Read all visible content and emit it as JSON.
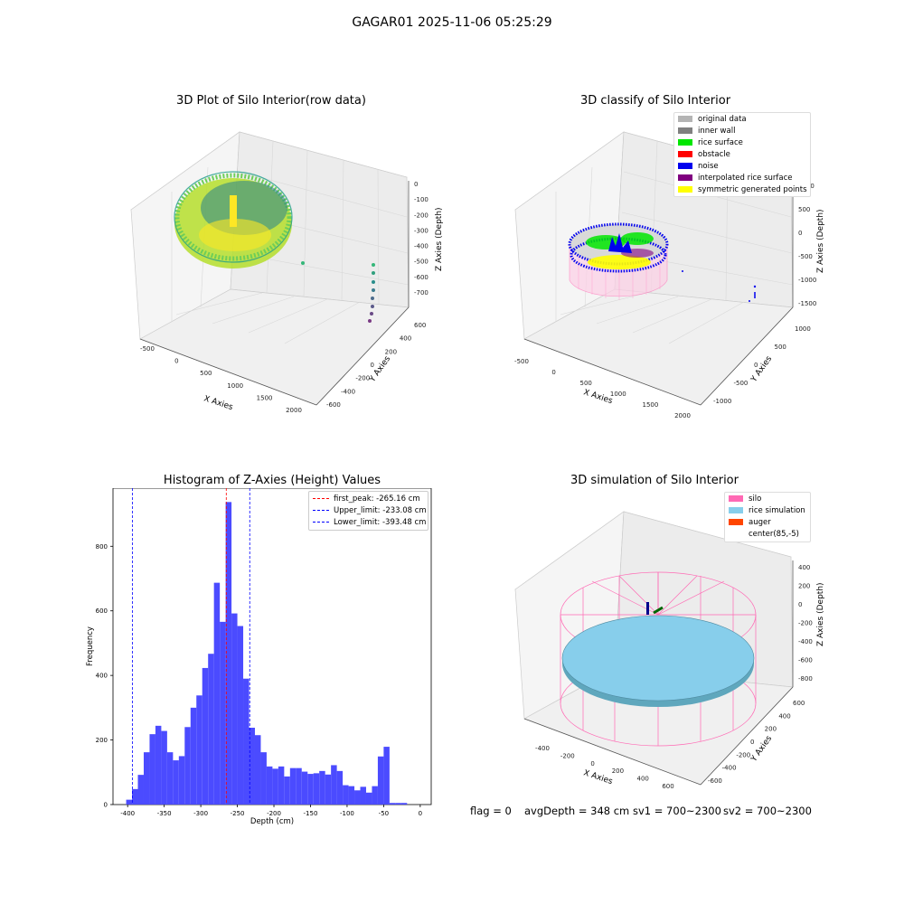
{
  "suptitle": "GAGAR01 2025-11-06 05:25:29",
  "status": {
    "flag": "flag = 0",
    "avg_depth": "avgDepth = 348 cm",
    "sv1": "sv1 = 700~2300",
    "sv2": "sv2 = 700~2300"
  },
  "chart_data": [
    {
      "type": "scatter",
      "title": "3D Plot of Silo Interior(row data)",
      "xlabel": "X Axies",
      "ylabel": "Y Axies",
      "zlabel": "Z Axies (Depth)",
      "x_ticks": [
        "-500",
        "0",
        "500",
        "1000",
        "1500",
        "2000"
      ],
      "y_ticks": [
        "-600",
        "-400",
        "-200",
        "0",
        "200",
        "400",
        "600"
      ],
      "z_ticks": [
        "0",
        "-100",
        "-200",
        "-300",
        "-400",
        "-500",
        "-600",
        "-700"
      ],
      "colormap": [
        "#440154",
        "#31688e",
        "#35b779",
        "#fde725"
      ]
    },
    {
      "type": "scatter",
      "title": "3D classify of Silo Interior",
      "xlabel": "X Axies",
      "ylabel": "Y Axies",
      "zlabel": "Z Axies (Depth)",
      "x_ticks": [
        "-500",
        "0",
        "500",
        "1000",
        "1500",
        "2000"
      ],
      "y_ticks": [
        "-1000",
        "-500",
        "0",
        "500",
        "1000"
      ],
      "z_ticks": [
        "1000",
        "500",
        "0",
        "-500",
        "-1000",
        "-1500"
      ],
      "legend_position": "top-right",
      "legend": [
        {
          "label": "original data",
          "color": "#b4b4b4"
        },
        {
          "label": "inner wall",
          "color": "#808080"
        },
        {
          "label": "rice surface",
          "color": "#00e600"
        },
        {
          "label": "obstacle",
          "color": "#ff0000"
        },
        {
          "label": "noise",
          "color": "#0000ee"
        },
        {
          "label": "interpolated rice surface",
          "color": "#800080"
        },
        {
          "label": "symmetric generated points",
          "color": "#ffff00"
        }
      ]
    },
    {
      "type": "bar",
      "title": "Histogram of Z-Axies (Height) Values",
      "xlabel": "Depth (cm)",
      "ylabel": "Frequency",
      "xlim": [
        -420,
        15
      ],
      "ylim": [
        0,
        980
      ],
      "x_ticks": [
        -400,
        -350,
        -300,
        -250,
        -200,
        -150,
        -100,
        -50,
        0
      ],
      "y_ticks": [
        0,
        200,
        400,
        600,
        800
      ],
      "bar_color": "#4b4bff",
      "bins": [
        {
          "x0": -402,
          "x1": -394,
          "v": 15
        },
        {
          "x0": -394,
          "x1": -386,
          "v": 48
        },
        {
          "x0": -386,
          "x1": -378,
          "v": 92
        },
        {
          "x0": -378,
          "x1": -370,
          "v": 162
        },
        {
          "x0": -370,
          "x1": -362,
          "v": 218
        },
        {
          "x0": -362,
          "x1": -354,
          "v": 244
        },
        {
          "x0": -354,
          "x1": -346,
          "v": 228
        },
        {
          "x0": -346,
          "x1": -338,
          "v": 162
        },
        {
          "x0": -338,
          "x1": -330,
          "v": 137
        },
        {
          "x0": -330,
          "x1": -322,
          "v": 150
        },
        {
          "x0": -322,
          "x1": -314,
          "v": 240
        },
        {
          "x0": -314,
          "x1": -306,
          "v": 300
        },
        {
          "x0": -306,
          "x1": -298,
          "v": 338
        },
        {
          "x0": -298,
          "x1": -290,
          "v": 423
        },
        {
          "x0": -290,
          "x1": -282,
          "v": 467
        },
        {
          "x0": -282,
          "x1": -274,
          "v": 687
        },
        {
          "x0": -274,
          "x1": -266,
          "v": 566
        },
        {
          "x0": -266,
          "x1": -258,
          "v": 937
        },
        {
          "x0": -258,
          "x1": -250,
          "v": 592
        },
        {
          "x0": -250,
          "x1": -242,
          "v": 553
        },
        {
          "x0": -242,
          "x1": -234,
          "v": 390
        },
        {
          "x0": -234,
          "x1": -226,
          "v": 238
        },
        {
          "x0": -226,
          "x1": -218,
          "v": 215
        },
        {
          "x0": -218,
          "x1": -210,
          "v": 162
        },
        {
          "x0": -210,
          "x1": -202,
          "v": 118
        },
        {
          "x0": -202,
          "x1": -194,
          "v": 111
        },
        {
          "x0": -194,
          "x1": -186,
          "v": 118
        },
        {
          "x0": -186,
          "x1": -178,
          "v": 87
        },
        {
          "x0": -178,
          "x1": -170,
          "v": 113
        },
        {
          "x0": -170,
          "x1": -162,
          "v": 113
        },
        {
          "x0": -162,
          "x1": -154,
          "v": 102
        },
        {
          "x0": -154,
          "x1": -146,
          "v": 95
        },
        {
          "x0": -146,
          "x1": -138,
          "v": 97
        },
        {
          "x0": -138,
          "x1": -130,
          "v": 104
        },
        {
          "x0": -130,
          "x1": -122,
          "v": 93
        },
        {
          "x0": -122,
          "x1": -114,
          "v": 122
        },
        {
          "x0": -114,
          "x1": -106,
          "v": 104
        },
        {
          "x0": -106,
          "x1": -98,
          "v": 60
        },
        {
          "x0": -98,
          "x1": -90,
          "v": 57
        },
        {
          "x0": -90,
          "x1": -82,
          "v": 44
        },
        {
          "x0": -82,
          "x1": -74,
          "v": 55
        },
        {
          "x0": -74,
          "x1": -66,
          "v": 37
        },
        {
          "x0": -66,
          "x1": -58,
          "v": 57
        },
        {
          "x0": -58,
          "x1": -50,
          "v": 149
        },
        {
          "x0": -50,
          "x1": -42,
          "v": 179
        },
        {
          "x0": -42,
          "x1": -34,
          "v": 5
        },
        {
          "x0": -34,
          "x1": -26,
          "v": 5
        },
        {
          "x0": -26,
          "x1": -18,
          "v": 5
        }
      ],
      "vlines": [
        {
          "x": -265.16,
          "color": "#ff0000",
          "label": "first_peak: -265.16 cm"
        },
        {
          "x": -233.08,
          "color": "#0000ff",
          "label": "Upper_limit: -233.08 cm"
        },
        {
          "x": -393.48,
          "color": "#0000ff",
          "label": "Lower_limit: -393.48 cm"
        }
      ],
      "legend_position": "top-right"
    },
    {
      "type": "scatter",
      "title": "3D simulation of Silo Interior",
      "xlabel": "X Axies",
      "ylabel": "Y Axies",
      "zlabel": "Z Axies (Depth)",
      "x_ticks": [
        "-400",
        "-200",
        "0",
        "200",
        "400",
        "600"
      ],
      "y_ticks": [
        "-600",
        "-400",
        "-200",
        "0",
        "200",
        "400",
        "600"
      ],
      "z_ticks": [
        "400",
        "200",
        "0",
        "-200",
        "-400",
        "-600",
        "-800"
      ],
      "legend_position": "top-right",
      "legend": [
        {
          "label": "silo",
          "color": "#ff69b4"
        },
        {
          "label": "rice simulation",
          "color": "#87ceeb"
        },
        {
          "label": "auger",
          "color": "#ff4500"
        },
        {
          "label": "center(85,-5)",
          "color": "#ffffff"
        }
      ]
    }
  ]
}
